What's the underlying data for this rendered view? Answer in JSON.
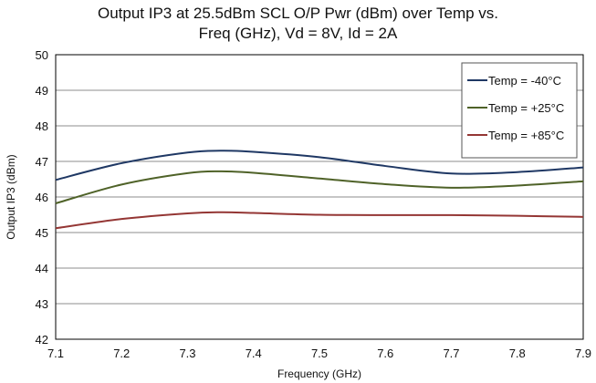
{
  "chart_data": {
    "type": "line",
    "title_line1": "Output IP3 at 25.5dBm SCL  O/P Pwr (dBm) over Temp vs.",
    "title_line2": "Freq (GHz), Vd = 8V, Id = 2A",
    "xlabel": "Frequency (GHz)",
    "ylabel": "Output IP3 (dBm)",
    "xlim": [
      7.1,
      7.9
    ],
    "ylim": [
      42,
      50
    ],
    "x_ticks": [
      "7.1",
      "7.2",
      "7.3",
      "7.4",
      "7.5",
      "7.6",
      "7.7",
      "7.8",
      "7.9"
    ],
    "y_ticks": [
      "42",
      "43",
      "44",
      "45",
      "46",
      "47",
      "48",
      "49",
      "50"
    ],
    "grid": "horizontal",
    "legend_position": "top-right",
    "x": [
      7.1,
      7.2,
      7.3,
      7.35,
      7.4,
      7.5,
      7.6,
      7.7,
      7.8,
      7.9
    ],
    "series": [
      {
        "name": "Temp = -40°C",
        "color": "#1f3864",
        "values": [
          46.48,
          46.95,
          47.25,
          47.3,
          47.27,
          47.12,
          46.87,
          46.66,
          46.7,
          46.83
        ]
      },
      {
        "name": "Temp = +25°C",
        "color": "#4f6228",
        "values": [
          45.82,
          46.35,
          46.67,
          46.72,
          46.68,
          46.52,
          46.36,
          46.26,
          46.32,
          46.44
        ]
      },
      {
        "name": "Temp = +85°C",
        "color": "#943634",
        "values": [
          45.12,
          45.38,
          45.54,
          45.57,
          45.55,
          45.5,
          45.49,
          45.49,
          45.47,
          45.44
        ]
      }
    ]
  }
}
